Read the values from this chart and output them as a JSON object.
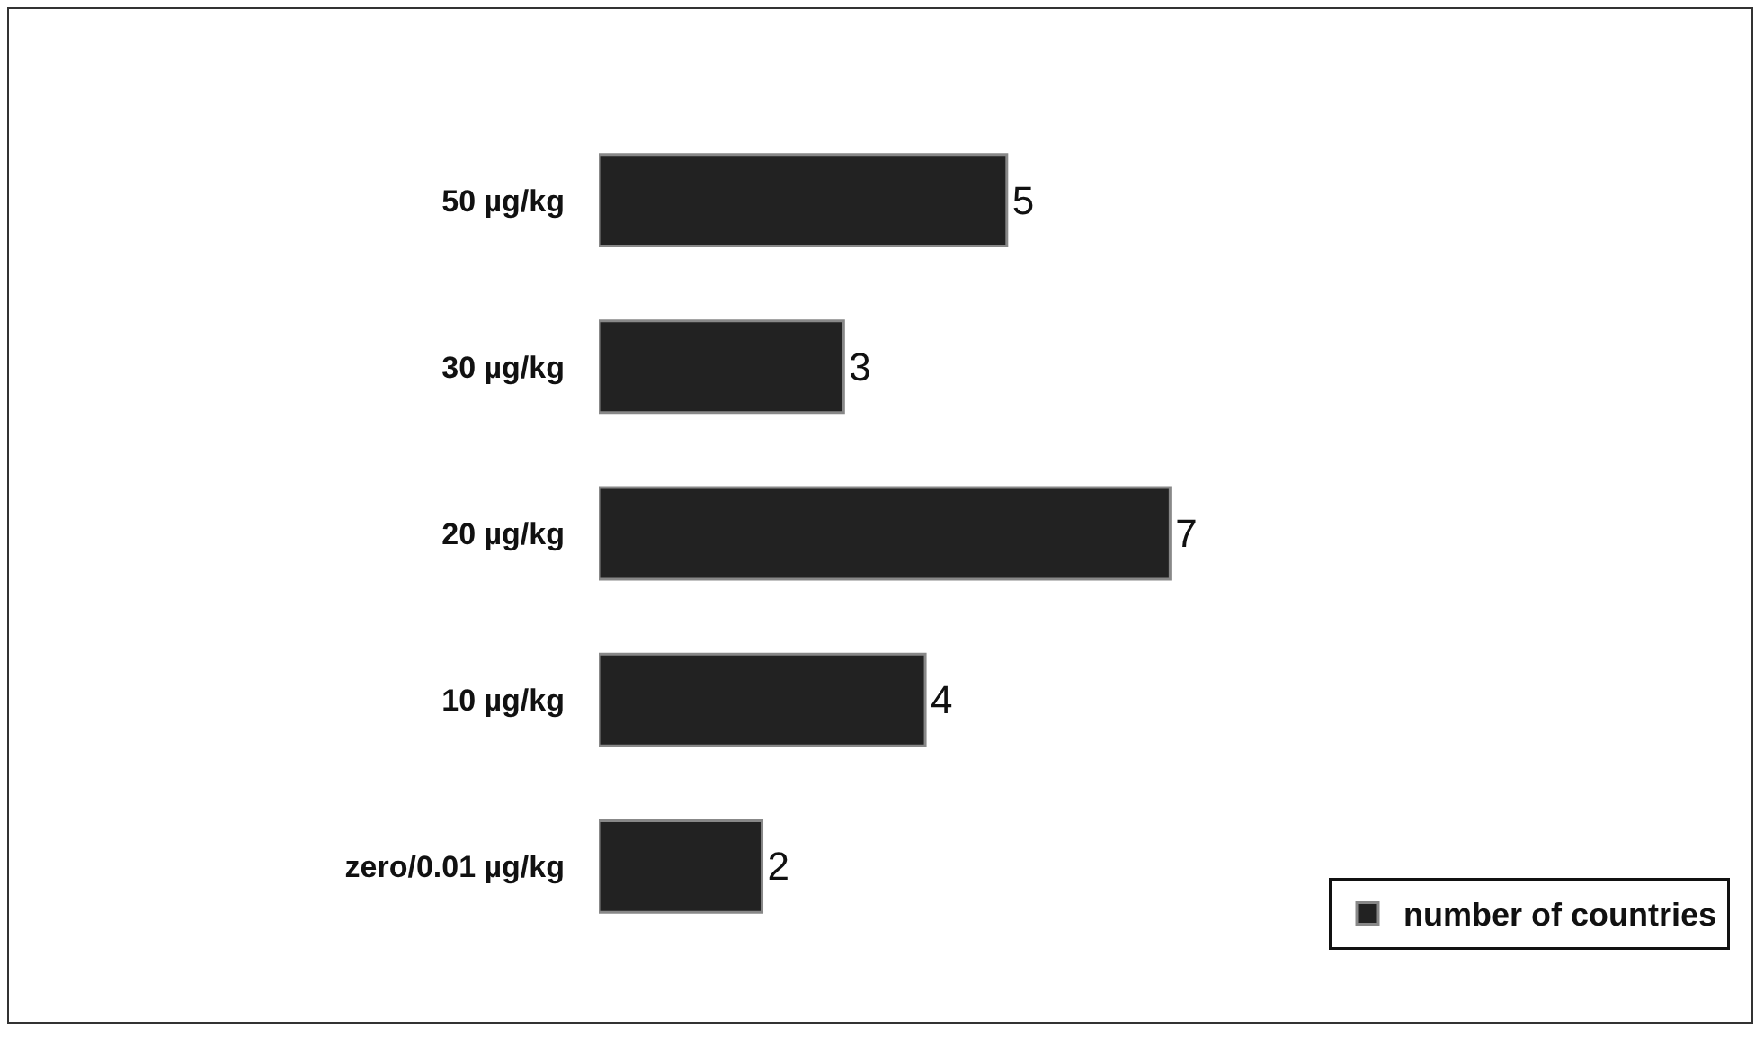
{
  "chart_data": {
    "type": "bar",
    "orientation": "horizontal",
    "categories": [
      "50 µg/kg",
      "30 µg/kg",
      "20 µg/kg",
      "10 µg/kg",
      "zero/0.01 µg/kg"
    ],
    "series": [
      {
        "name": "number of countries",
        "color": "#222222",
        "values": [
          5,
          3,
          7,
          4,
          2
        ]
      }
    ],
    "data_labels": true,
    "legend": "bottom right",
    "grid": false
  }
}
